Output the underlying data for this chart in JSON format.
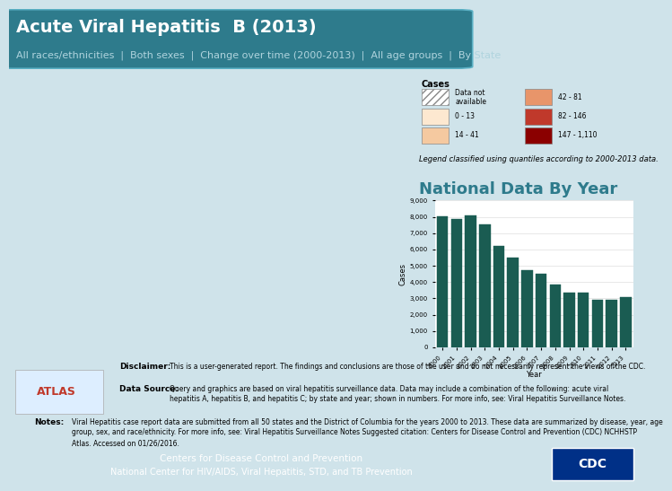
{
  "title": "Acute Viral Hepatitis  B (2013)",
  "subtitle": "All races/ethnicities  |  Both sexes  |  Change over time (2000-2013)  |  All age groups  |  By State",
  "chart_title": "National Data By Year",
  "years": [
    2000,
    2001,
    2002,
    2003,
    2004,
    2005,
    2006,
    2007,
    2008,
    2009,
    2010,
    2011,
    2012,
    2013
  ],
  "cases": [
    8036,
    7843,
    8064,
    7526,
    6212,
    5494,
    4713,
    4519,
    3857,
    3374,
    3350,
    2895,
    2890,
    3050
  ],
  "bar_color": "#1a5c52",
  "ylabel": "Cases",
  "xlabel": "Year",
  "ylim": [
    0,
    9000
  ],
  "yticks": [
    0,
    1000,
    2000,
    3000,
    4000,
    5000,
    6000,
    7000,
    8000,
    9000
  ],
  "header_bg": "#2e7b8c",
  "header_title_color": "#ffffff",
  "header_subtitle_color": "#b0d4de",
  "body_bg": "#cfe3ea",
  "right_panel_bg": "#cfe3ea",
  "footer_bg": "#2e7b8c",
  "footer_text_line1": "Centers for Disease Control and Prevention",
  "footer_text_line2": "National Center for HIV/AIDS, Viral Hepatitis, STD, and TB Prevention",
  "disclaimer_label": "Disclaimer:",
  "disclaimer_text": "This is a user-generated report. The findings and conclusions are those of the user and do not necessarily represent the views of the CDC.",
  "datasource_label": "Data Source:",
  "datasource_text": "Query and graphics are based on viral hepatitis surveillance data. Data may include a combination of the following: acute viral\nhepatitis A, hepatitis B, and hepatitis C; by state and year; shown in numbers. For more info, see: Viral Hepatitis Surveillance Notes.",
  "notes_label": "Notes:",
  "notes_text": "Viral Hepatitis case report data are submitted from all 50 states and the District of Columbia for the years 2000 to 2013. These data are summarized by disease, year, age\ngroup, sex, and race/ethnicity. For more info, see: Viral Hepatitis Surveillance Notes Suggested citation: Centers for Disease Control and Prevention (CDC) NCHHSTP\nAtlas. Accessed on 01/26/2016.",
  "legend_title": "Cases",
  "legend_items": [
    {
      "label": "Data not\navailable",
      "color": "#ffffff",
      "hatch": "////"
    },
    {
      "label": "0 - 13",
      "color": "#fde8d0"
    },
    {
      "label": "14 - 41",
      "color": "#f5c9a0"
    },
    {
      "label": "42 - 81",
      "color": "#e8956a"
    },
    {
      "label": "82 - 146",
      "color": "#c0392b"
    },
    {
      "label": "147 - 1,110",
      "color": "#8b0000"
    }
  ],
  "legend_classified_text": "Legend classified using quantiles according to 2000-2013 data.",
  "title_fontsize": 14,
  "subtitle_fontsize": 8,
  "chart_title_fontsize": 13
}
